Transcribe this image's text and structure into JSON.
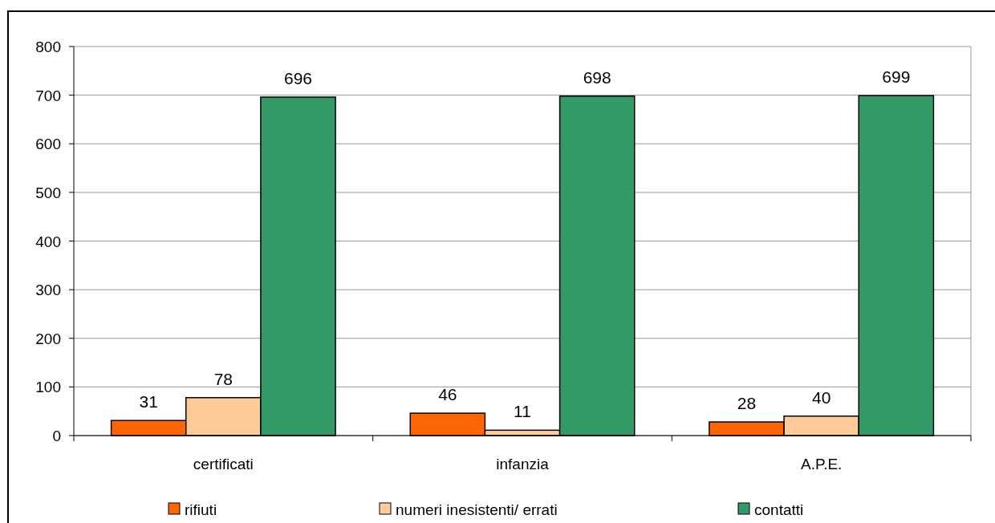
{
  "chart_data": {
    "type": "bar",
    "categories": [
      "certificati",
      "infanzia",
      "A.P.E."
    ],
    "series": [
      {
        "name": "rifiuti",
        "color": "#ff6600",
        "values": [
          31,
          46,
          28
        ]
      },
      {
        "name": "numeri inesistenti/ errati",
        "color": "#ffcc99",
        "values": [
          78,
          11,
          40
        ]
      },
      {
        "name": "contatti",
        "color": "#339966",
        "values": [
          696,
          698,
          699
        ]
      }
    ],
    "ylim": [
      0,
      800
    ],
    "yticks": [
      0,
      100,
      200,
      300,
      400,
      500,
      600,
      700,
      800
    ],
    "grid": "y",
    "legend": "bottom",
    "data_labels": true
  }
}
